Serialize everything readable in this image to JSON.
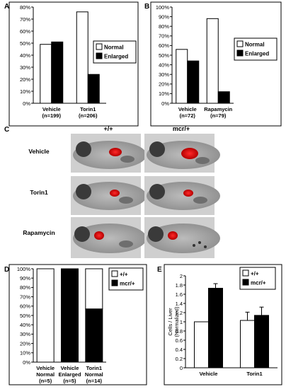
{
  "panels": {
    "A": "A",
    "B": "B",
    "C": "C",
    "D": "D",
    "E": "E"
  },
  "panel_c": {
    "col_labels": [
      "+/+",
      "mcr/+"
    ],
    "row_labels": [
      "Vehicle",
      "Torin1",
      "Rapamycin"
    ]
  },
  "chart_data": [
    {
      "panel": "A",
      "type": "bar",
      "categories": [
        [
          "Vehicle",
          "(n=199)"
        ],
        [
          "Torin1",
          "(n=206)"
        ]
      ],
      "ytick_labels": [
        "0%",
        "10%",
        "20%",
        "30%",
        "40%",
        "50%",
        "60%",
        "70%",
        "80%"
      ],
      "ylim": [
        0,
        80
      ],
      "legend": [
        "Normal",
        "Enlarged"
      ],
      "legend_position": "right",
      "series": [
        {
          "name": "Normal",
          "color": "#ffffff",
          "values": [
            49,
            76
          ]
        },
        {
          "name": "Enlarged",
          "color": "#000000",
          "values": [
            51,
            24
          ]
        }
      ]
    },
    {
      "panel": "B",
      "type": "bar",
      "categories": [
        [
          "Vehicle",
          "(n=72)"
        ],
        [
          "Rapamycin",
          "(n=79)"
        ]
      ],
      "ytick_labels": [
        "0%",
        "10%",
        "20%",
        "30%",
        "40%",
        "50%",
        "60%",
        "70%",
        "80%",
        "90%",
        "100%"
      ],
      "ylim": [
        0,
        100
      ],
      "legend": [
        "Normal",
        "Enlarged"
      ],
      "legend_position": "right",
      "series": [
        {
          "name": "Normal",
          "color": "#ffffff",
          "values": [
            56,
            88
          ]
        },
        {
          "name": "Enlarged",
          "color": "#000000",
          "values": [
            44,
            12
          ]
        }
      ]
    },
    {
      "panel": "D",
      "type": "bar",
      "stacked": true,
      "categories": [
        [
          "Vehicle",
          "Normal",
          "(n=5)"
        ],
        [
          "Vehicle",
          "Enlarged",
          "(n=5)"
        ],
        [
          "Torin1",
          "Normal",
          "(n=14)"
        ]
      ],
      "ytick_labels": [
        "0%",
        "10%",
        "20%",
        "30%",
        "40%",
        "50%",
        "60%",
        "70%",
        "80%",
        "90%",
        "100%"
      ],
      "ylim": [
        0,
        100
      ],
      "legend": [
        "+/+",
        "mcr/+"
      ],
      "legend_position": "right",
      "series": [
        {
          "name": "mcr/+",
          "color": "#000000",
          "values": [
            0,
            100,
            57
          ]
        },
        {
          "name": "+/+",
          "color": "#ffffff",
          "values": [
            100,
            0,
            43
          ]
        }
      ]
    },
    {
      "panel": "E",
      "type": "bar",
      "categories": [
        "Vehicle",
        "Torin1"
      ],
      "ylabel": "Cells / Liver (Normalized)",
      "ylabel_lines": [
        "Cells / Liver",
        "(Normalized)"
      ],
      "ytick_labels": [
        "0",
        "0.2",
        "0.4",
        "0.6",
        "0.8",
        "1",
        "1.2",
        "1.4",
        "1.6",
        "1.8",
        "2"
      ],
      "ylim": [
        0,
        2
      ],
      "legend": [
        "+/+",
        "mcr/+"
      ],
      "legend_position": "top-right",
      "series": [
        {
          "name": "+/+",
          "color": "#ffffff",
          "values": [
            1.0,
            1.03
          ],
          "errors": [
            0,
            0.18
          ]
        },
        {
          "name": "mcr/+",
          "color": "#000000",
          "values": [
            1.73,
            1.14
          ],
          "errors": [
            0.1,
            0.18
          ]
        }
      ]
    }
  ]
}
